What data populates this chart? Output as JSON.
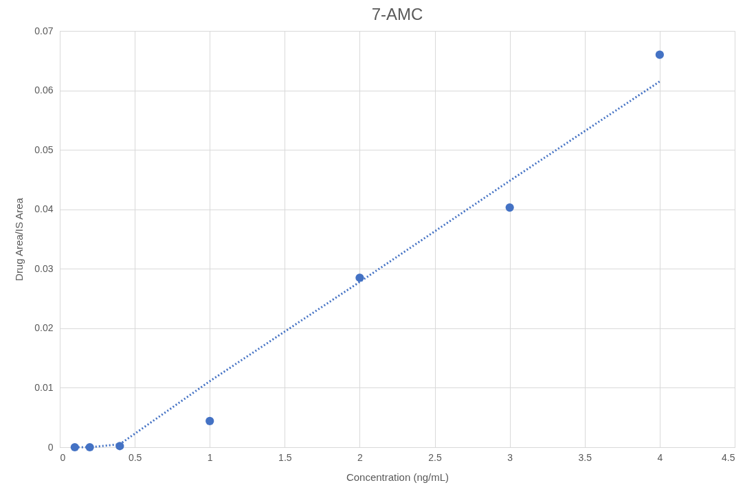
{
  "chart_data": {
    "type": "scatter",
    "title": "7-AMC",
    "xlabel": "Concentration (ng/mL)",
    "ylabel": "Drug Area/IS Area",
    "series": [
      {
        "color": "#4472c4",
        "marker": "circle",
        "x": [
          0.1,
          0.2,
          0.4,
          1,
          2,
          3,
          4
        ],
        "values": [
          0,
          0,
          0.0002,
          0.0044,
          0.0285,
          0.0403,
          0.066
        ]
      },
      {
        "type": "line",
        "color": "#4472c4",
        "line_style": "dotted",
        "x": [
          0.1,
          0.2,
          0.4,
          1,
          2,
          3,
          4
        ],
        "values": [
          0,
          0,
          0.0005,
          0.0111,
          0.0278,
          0.0448,
          0.0615
        ]
      }
    ],
    "xlim": [
      0,
      4.5
    ],
    "xticks": [
      0,
      0.5,
      1,
      1.5,
      2,
      2.5,
      3,
      3.5,
      4,
      4.5
    ],
    "ylim": [
      0,
      0.07
    ],
    "yticks": [
      0,
      0.01,
      0.02,
      0.03,
      0.04,
      0.05,
      0.06,
      0.07
    ],
    "grid": true,
    "legend": false
  }
}
